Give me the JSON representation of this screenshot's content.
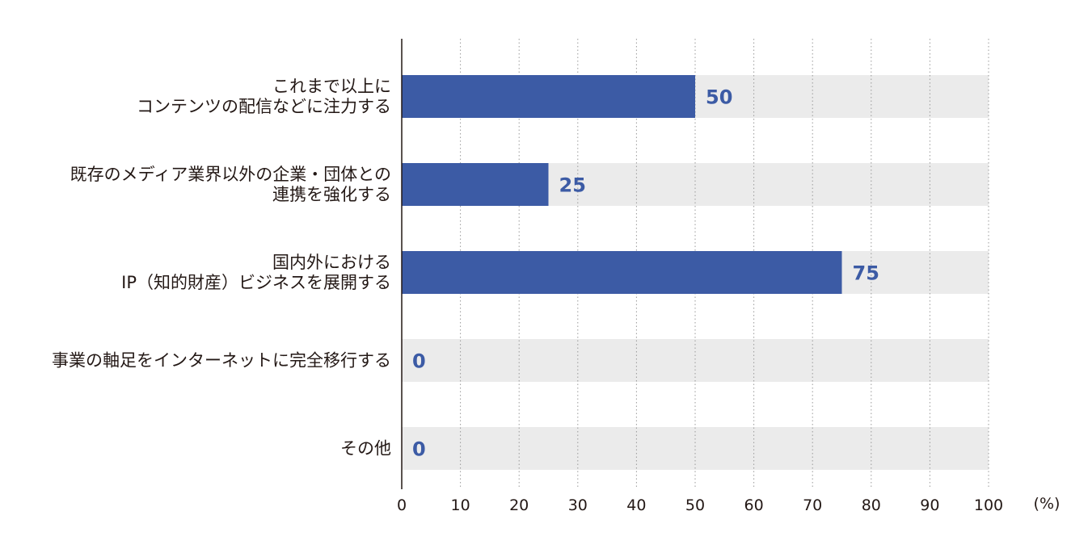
{
  "chart_data": {
    "type": "bar",
    "orientation": "horizontal",
    "categories": [
      [
        "これまで以上に",
        "コンテンツの配信などに注力する"
      ],
      [
        "既存のメディア業界以外の企業・団体との",
        "連携を強化する"
      ],
      [
        "国内外における",
        "IP（知的財産）ビジネスを展開する"
      ],
      [
        "事業の軸足をインターネットに完全移行する"
      ],
      [
        "その他"
      ]
    ],
    "values": [
      50,
      25,
      75,
      0,
      0
    ],
    "value_labels": [
      "50",
      "25",
      "75",
      "0",
      "0"
    ],
    "xlim": [
      0,
      100
    ],
    "x_ticks": [
      "0",
      "10",
      "20",
      "30",
      "40",
      "50",
      "60",
      "70",
      "80",
      "90",
      "100"
    ],
    "unit_label": "(%)",
    "grid": true,
    "colors": {
      "bar": "#3c5ba5",
      "track": "#ebebeb",
      "value_text": "#3c5ba5",
      "grid": "#9a9a9a",
      "axis": "#231815",
      "text": "#231815"
    }
  }
}
